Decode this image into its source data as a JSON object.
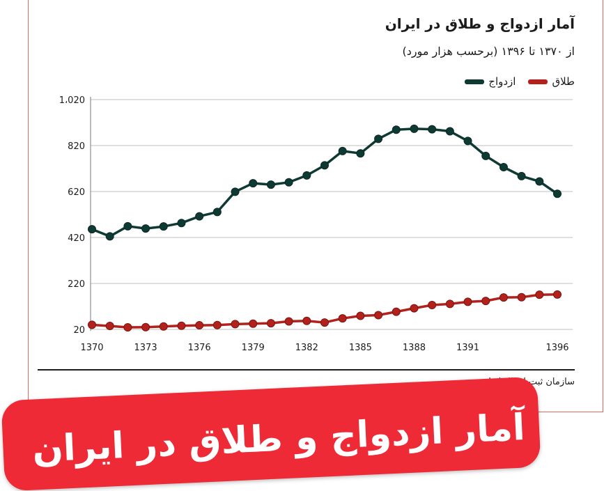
{
  "header": {
    "title": "آمار ازدواج و طلاق در ایران",
    "subtitle": "از ۱۳۷۰ تا ۱۳۹۶ (برحسب هزار مورد)"
  },
  "legend": {
    "marriage_label": "ازدواج",
    "divorce_label": "طلاق"
  },
  "source": "سازمان ثبت احوال ایران",
  "banner": {
    "text": "آمار ازدواج و طلاق در ایران"
  },
  "colors": {
    "marriage": "#0f3a34",
    "divorce": "#b3211c",
    "grid": "#bfbfbf",
    "banner": "#ee2a36"
  },
  "chart_data": {
    "type": "line",
    "title": "آمار ازدواج و طلاق در ایران",
    "subtitle": "از ۱۳۷۰ تا ۱۳۹۶ (برحسب هزار مورد)",
    "x": [
      1370,
      1371,
      1372,
      1373,
      1374,
      1375,
      1376,
      1377,
      1378,
      1379,
      1380,
      1381,
      1382,
      1383,
      1384,
      1385,
      1386,
      1387,
      1388,
      1389,
      1390,
      1391,
      1392,
      1393,
      1394,
      1395,
      1396
    ],
    "x_ticks": [
      "1370",
      "1373",
      "1376",
      "1379",
      "1382",
      "1385",
      "1388",
      "1391",
      "1396"
    ],
    "y_ticks": [
      "20",
      "220",
      "420",
      "620",
      "820",
      "1،020"
    ],
    "ylim": [
      20,
      1020
    ],
    "grid": true,
    "legend_position": "top-right",
    "series": [
      {
        "name": "ازدواج",
        "values": [
          456,
          425,
          469,
          459,
          468,
          483,
          512,
          531,
          619,
          656,
          650,
          660,
          690,
          734,
          796,
          786,
          849,
          889,
          893,
          891,
          882,
          840,
          775,
          726,
          687,
          664,
          610
        ]
      },
      {
        "name": "طلاق",
        "values": [
          40,
          35,
          29,
          30,
          33,
          36,
          38,
          39,
          43,
          45,
          47,
          55,
          57,
          50,
          68,
          79,
          82,
          97,
          112,
          126,
          131,
          140,
          144,
          159,
          160,
          171,
          172
        ]
      }
    ]
  }
}
